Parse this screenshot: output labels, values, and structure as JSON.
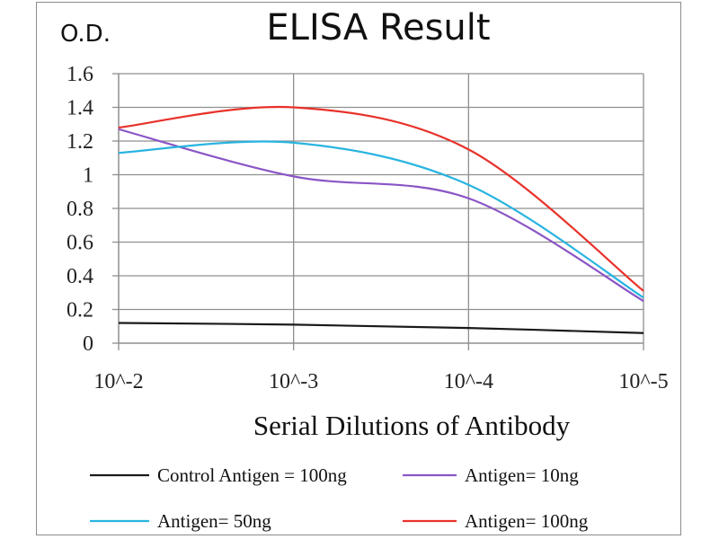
{
  "chart_data": {
    "type": "line",
    "title": "ELISA Result",
    "ylabel": "O.D.",
    "xlabel": "Serial Dilutions  of Antibody",
    "categories": [
      "10^-2",
      "10^-3",
      "10^-4",
      "10^-5"
    ],
    "ylim": [
      0,
      1.6
    ],
    "yticks": [
      "0",
      "0.2",
      "0.4",
      "0.6",
      "0.8",
      "1",
      "1.2",
      "1.4",
      "1.6"
    ],
    "grid": true,
    "legend_position": "bottom",
    "series": [
      {
        "name": "Control Antigen = 100ng",
        "color": "#1a1a1a",
        "values": [
          0.12,
          0.11,
          0.09,
          0.06
        ]
      },
      {
        "name": "Antigen= 10ng",
        "color": "#8a55c6",
        "values": [
          1.27,
          0.99,
          0.86,
          0.25
        ]
      },
      {
        "name": "Antigen= 50ng",
        "color": "#29b4e0",
        "values": [
          1.13,
          1.19,
          0.94,
          0.27
        ]
      },
      {
        "name": "Antigen= 100ng",
        "color": "#e8322b",
        "values": [
          1.28,
          1.4,
          1.15,
          0.31
        ]
      }
    ]
  }
}
